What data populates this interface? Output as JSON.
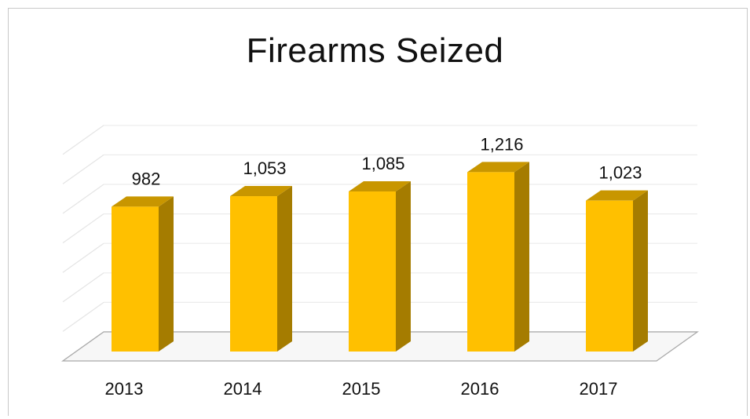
{
  "chart_data": {
    "type": "bar",
    "title": "Firearms Seized",
    "categories": [
      "2013",
      "2014",
      "2015",
      "2016",
      "2017"
    ],
    "values": [
      982,
      1053,
      1085,
      1216,
      1023
    ],
    "value_labels": [
      "982",
      "1,053",
      "1,085",
      "1,216",
      "1,023"
    ],
    "ylim": [
      0,
      1400
    ],
    "grid": true,
    "legend": "none",
    "colors": {
      "bar_front": "#FFC000",
      "bar_side": "#A57C00",
      "bar_top": "#C89600"
    }
  }
}
